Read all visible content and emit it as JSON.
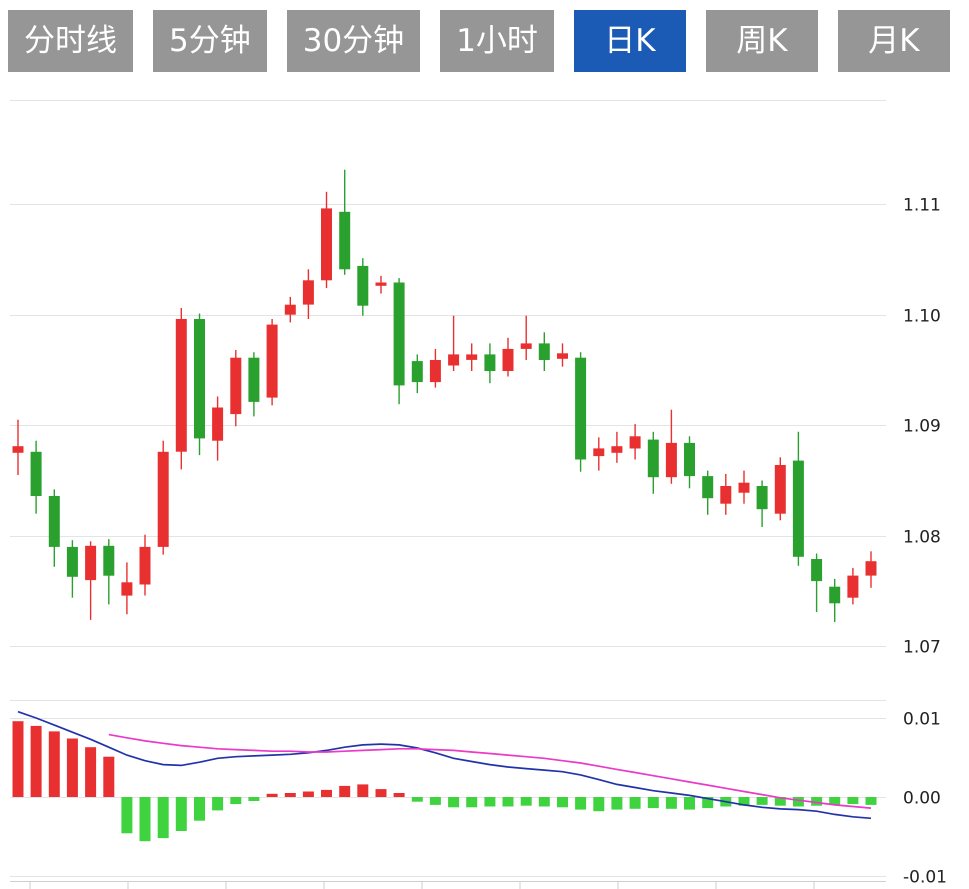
{
  "toolbar": {
    "buttons": [
      {
        "label": "分时线",
        "active": false
      },
      {
        "label": "5分钟",
        "active": false
      },
      {
        "label": "30分钟",
        "active": false
      },
      {
        "label": "1小时",
        "active": false
      },
      {
        "label": "日K",
        "active": true
      },
      {
        "label": "周K",
        "active": false
      },
      {
        "label": "月K",
        "active": false
      }
    ],
    "active_bg": "#1b5bb5",
    "inactive_bg": "#969696",
    "text_color": "#ffffff"
  },
  "chart_data": [
    {
      "type": "candlestick",
      "title": "日K candlestick price panel",
      "ylim": [
        1.0685,
        1.1185
      ],
      "yticks": [
        {
          "value": 1.11,
          "label": "1.11"
        },
        {
          "value": 1.1,
          "label": "1.10"
        },
        {
          "value": 1.09,
          "label": "1.09"
        },
        {
          "value": 1.08,
          "label": "1.08"
        },
        {
          "value": 1.07,
          "label": "1.07"
        }
      ],
      "up_color": "#e93030",
      "down_color": "#2aa12e",
      "grid": true,
      "candles": [
        [
          1.0875,
          1.0905,
          1.0855,
          1.0881
        ],
        [
          1.0876,
          1.0886,
          1.082,
          1.0836
        ],
        [
          1.0836,
          1.0842,
          1.0772,
          1.079
        ],
        [
          1.079,
          1.0796,
          1.0744,
          1.0763
        ],
        [
          1.076,
          1.0795,
          1.0724,
          1.0791
        ],
        [
          1.0791,
          1.0797,
          1.0738,
          1.0764
        ],
        [
          1.0746,
          1.0776,
          1.0729,
          1.0758
        ],
        [
          1.0756,
          1.0801,
          1.0746,
          1.079
        ],
        [
          1.079,
          1.0886,
          1.0783,
          1.0876
        ],
        [
          1.0876,
          1.1006,
          1.086,
          1.0996
        ],
        [
          1.0996,
          1.1001,
          1.0873,
          1.0888
        ],
        [
          1.0886,
          1.0926,
          1.0868,
          1.0916
        ],
        [
          1.091,
          1.0968,
          1.0899,
          1.0961
        ],
        [
          1.0961,
          1.0966,
          1.0908,
          1.0921
        ],
        [
          1.0925,
          1.0996,
          1.0918,
          1.0991
        ],
        [
          1.1,
          1.1016,
          1.0993,
          1.1009
        ],
        [
          1.1009,
          1.1041,
          1.0996,
          1.1031
        ],
        [
          1.1031,
          1.1111,
          1.1024,
          1.1096
        ],
        [
          1.1093,
          1.1131,
          1.1036,
          1.1041
        ],
        [
          1.1044,
          1.1051,
          1.0999,
          1.1008
        ],
        [
          1.1026,
          1.1035,
          1.1019,
          1.1029
        ],
        [
          1.1029,
          1.1033,
          1.0919,
          1.0936
        ],
        [
          1.0958,
          1.0964,
          1.0929,
          1.0939
        ],
        [
          1.0939,
          1.0969,
          1.0934,
          1.0959
        ],
        [
          1.0954,
          1.0999,
          1.0949,
          1.0964
        ],
        [
          1.0959,
          1.0974,
          1.0949,
          1.0964
        ],
        [
          1.0964,
          1.0974,
          1.0938,
          1.0949
        ],
        [
          1.0949,
          1.0979,
          1.0944,
          1.0969
        ],
        [
          1.0969,
          1.0999,
          1.0959,
          1.0974
        ],
        [
          1.0974,
          1.0984,
          1.0949,
          1.0959
        ],
        [
          1.096,
          1.0974,
          1.0953,
          1.0965
        ],
        [
          1.0961,
          1.0966,
          1.0858,
          1.0869
        ],
        [
          1.0872,
          1.0889,
          1.0859,
          1.0879
        ],
        [
          1.0875,
          1.0894,
          1.0866,
          1.0881
        ],
        [
          1.0879,
          1.0901,
          1.0869,
          1.089
        ],
        [
          1.0887,
          1.0894,
          1.0838,
          1.0853
        ],
        [
          1.0853,
          1.0914,
          1.0847,
          1.0884
        ],
        [
          1.0884,
          1.089,
          1.0843,
          1.0854
        ],
        [
          1.0854,
          1.0859,
          1.0819,
          1.0834
        ],
        [
          1.0829,
          1.0856,
          1.0819,
          1.0845
        ],
        [
          1.0839,
          1.0859,
          1.0829,
          1.0848
        ],
        [
          1.0845,
          1.085,
          1.0808,
          1.0824
        ],
        [
          1.082,
          1.0871,
          1.0814,
          1.0864
        ],
        [
          1.0868,
          1.0894,
          1.0773,
          1.0781
        ],
        [
          1.0779,
          1.0784,
          1.0731,
          1.0759
        ],
        [
          1.0754,
          1.0761,
          1.0722,
          1.0739
        ],
        [
          1.0744,
          1.0771,
          1.0738,
          1.0764
        ],
        [
          1.0764,
          1.0786,
          1.0753,
          1.0777
        ]
      ]
    },
    {
      "type": "macd",
      "title": "MACD indicator panel",
      "ylim": [
        -0.0105,
        0.0123
      ],
      "yticks": [
        {
          "value": 0.01,
          "label": "0.01"
        },
        {
          "value": 0.0,
          "label": "0.00"
        },
        {
          "value": -0.01,
          "label": "-0.01"
        }
      ],
      "colors": {
        "positive": "#e93030",
        "negative": "#3fd43f",
        "dif": "#2233aa",
        "dea": "#e93ac8"
      },
      "histogram": [
        0.0096,
        0.009,
        0.0083,
        0.0074,
        0.0063,
        0.0051,
        -0.0046,
        -0.0056,
        -0.0052,
        -0.0043,
        -0.003,
        -0.0017,
        -0.0009,
        -0.0005,
        0.0004,
        0.0005,
        0.0007,
        0.0009,
        0.0014,
        0.0016,
        0.001,
        0.0005,
        -0.0006,
        -0.001,
        -0.0013,
        -0.0013,
        -0.0012,
        -0.0012,
        -0.0011,
        -0.0012,
        -0.0013,
        -0.0016,
        -0.0018,
        -0.0016,
        -0.0015,
        -0.0014,
        -0.0015,
        -0.0016,
        -0.0014,
        -0.0012,
        -0.0011,
        -0.001,
        -0.0011,
        -0.0012,
        -0.0011,
        -0.001,
        -0.0009,
        -0.001
      ],
      "dif": [
        0.0108,
        0.01,
        0.0091,
        0.0082,
        0.0073,
        0.0063,
        0.0053,
        0.0046,
        0.0041,
        0.004,
        0.0044,
        0.0049,
        0.0051,
        0.0052,
        0.0053,
        0.0054,
        0.0056,
        0.0059,
        0.0063,
        0.0066,
        0.0067,
        0.0066,
        0.0062,
        0.0056,
        0.0049,
        0.0045,
        0.0041,
        0.0038,
        0.0036,
        0.0034,
        0.0032,
        0.0028,
        0.0022,
        0.0016,
        0.0012,
        0.0008,
        0.0005,
        0.0002,
        -0.0002,
        -0.0006,
        -0.001,
        -0.0013,
        -0.0015,
        -0.0016,
        -0.0018,
        -0.0022,
        -0.0025,
        -0.0027
      ],
      "dea": [
        null,
        null,
        null,
        null,
        null,
        0.0079,
        0.0075,
        0.0071,
        0.0068,
        0.0065,
        0.0063,
        0.0061,
        0.006,
        0.0059,
        0.0058,
        0.0058,
        0.0057,
        0.0057,
        0.0058,
        0.0059,
        0.006,
        0.0061,
        0.0061,
        0.006,
        0.0059,
        0.0057,
        0.0055,
        0.0053,
        0.0051,
        0.0049,
        0.0046,
        0.0043,
        0.0039,
        0.0035,
        0.0031,
        0.0027,
        0.0023,
        0.0019,
        0.0015,
        0.0011,
        0.0007,
        0.0003,
        -0.0001,
        -0.0004,
        -0.0007,
        -0.001,
        -0.0012,
        -0.0014
      ]
    }
  ]
}
